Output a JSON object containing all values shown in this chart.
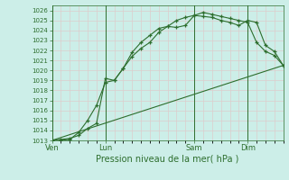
{
  "xlabel": "Pression niveau de la mer( hPa )",
  "bg_color": "#cceee8",
  "grid_color": "#ddcccc",
  "line_color": "#2d6e2d",
  "ylim": [
    1013,
    1026.5
  ],
  "yticks": [
    1013,
    1014,
    1015,
    1016,
    1017,
    1018,
    1019,
    1020,
    1021,
    1022,
    1023,
    1024,
    1025,
    1026
  ],
  "xtick_labels": [
    "Ven",
    "Lun",
    "Sam",
    "Dim"
  ],
  "xtick_positions": [
    0,
    24,
    64,
    88
  ],
  "xlim": [
    0,
    104
  ],
  "vline_positions": [
    0,
    24,
    64,
    88
  ],
  "line1_x": [
    0,
    4,
    8,
    12,
    16,
    20,
    24,
    28,
    32,
    36,
    40,
    44,
    48,
    52,
    56,
    60,
    64,
    68,
    72,
    76,
    80,
    84,
    88,
    92,
    96,
    100,
    104
  ],
  "line1_y": [
    1013.0,
    1013.1,
    1013.2,
    1013.5,
    1014.2,
    1014.7,
    1019.2,
    1019.0,
    1020.2,
    1021.4,
    1022.2,
    1022.8,
    1023.8,
    1024.4,
    1024.3,
    1024.5,
    1025.5,
    1025.8,
    1025.6,
    1025.4,
    1025.2,
    1025.0,
    1024.8,
    1022.8,
    1021.9,
    1021.5,
    1020.5
  ],
  "line2_x": [
    0,
    4,
    8,
    12,
    16,
    20,
    24,
    28,
    32,
    36,
    40,
    44,
    48,
    52,
    56,
    60,
    64,
    68,
    72,
    76,
    80,
    84,
    88,
    92,
    96,
    100,
    104
  ],
  "line2_y": [
    1013.0,
    1013.0,
    1013.1,
    1013.8,
    1015.0,
    1016.5,
    1018.8,
    1019.0,
    1020.2,
    1021.8,
    1022.8,
    1023.5,
    1024.2,
    1024.4,
    1025.0,
    1025.3,
    1025.5,
    1025.4,
    1025.3,
    1025.0,
    1024.8,
    1024.5,
    1025.0,
    1024.8,
    1022.5,
    1021.9,
    1020.5
  ],
  "line3_x": [
    0,
    104
  ],
  "line3_y": [
    1013.0,
    1020.5
  ]
}
